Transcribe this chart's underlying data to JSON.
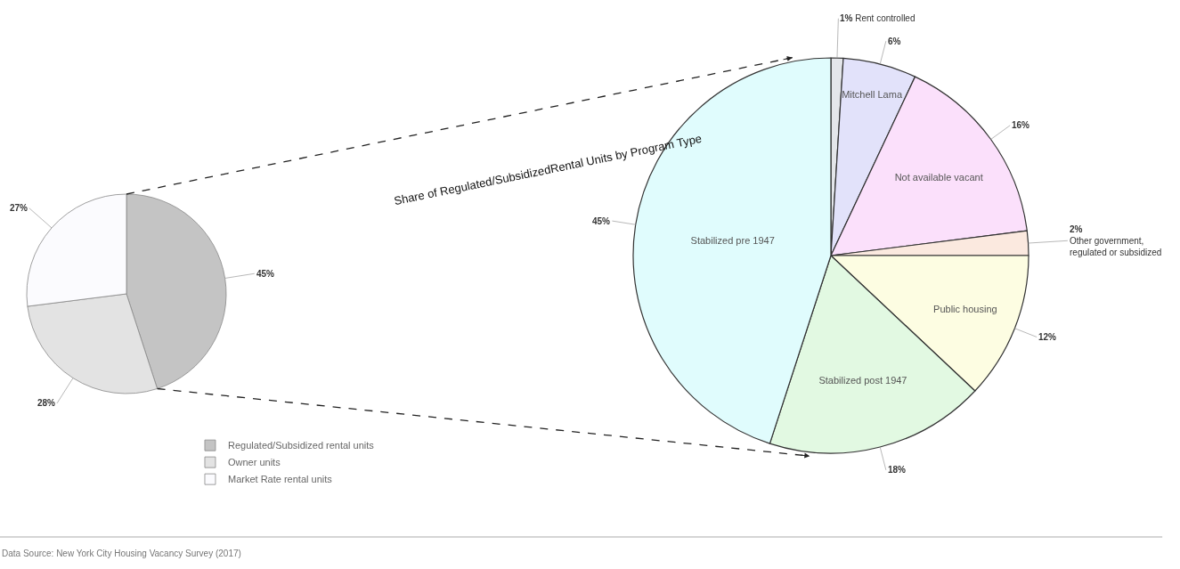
{
  "chart_data": [
    {
      "type": "pie",
      "categories": [
        "Regulated/Subsidized rental units",
        "Owner units",
        "Market Rate rental units"
      ],
      "values": [
        45,
        28,
        27
      ],
      "value_labels": [
        "45%",
        "28%",
        "27%"
      ],
      "colors": [
        "#c4c4c4",
        "#e3e3e3",
        "#fbfbfe"
      ],
      "legend": "bottom right",
      "annotations": [
        "Data Source: New York City Housing Vacancy Survey (2017)"
      ]
    },
    {
      "type": "pie",
      "title": "Share of Regulated/SubsidizedRental Units by Program Type",
      "categories": [
        "Rent controlled",
        "Mitchell Lama",
        "Not available vacant",
        "Other government, regulated or subsidized",
        "Public housing",
        "Stabilized post 1947",
        "Stabilized pre 1947"
      ],
      "values": [
        1,
        6,
        16,
        2,
        12,
        18,
        45
      ],
      "value_labels": [
        "1%",
        "6%",
        "16%",
        "2%",
        "12%",
        "18%",
        "45%"
      ],
      "colors": [
        "#e4e6ea",
        "#e2e2fa",
        "#fbe0fb",
        "#fbe9df",
        "#fdfde2",
        "#e2f9e2",
        "#e0fcfd"
      ],
      "legend": false
    }
  ]
}
